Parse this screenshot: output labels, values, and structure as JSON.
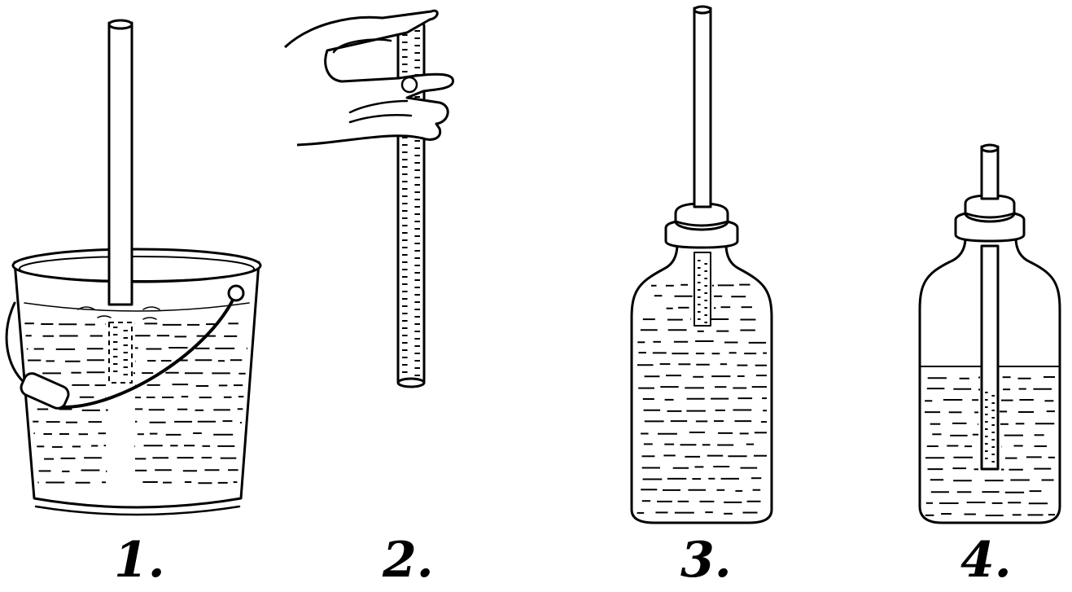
{
  "figures": [
    {
      "id": "fig-1",
      "label": "1."
    },
    {
      "id": "fig-2",
      "label": "2."
    },
    {
      "id": "fig-3",
      "label": "3."
    },
    {
      "id": "fig-4",
      "label": "4."
    }
  ],
  "colors": {
    "ink": "#000000",
    "paper": "#ffffff"
  }
}
